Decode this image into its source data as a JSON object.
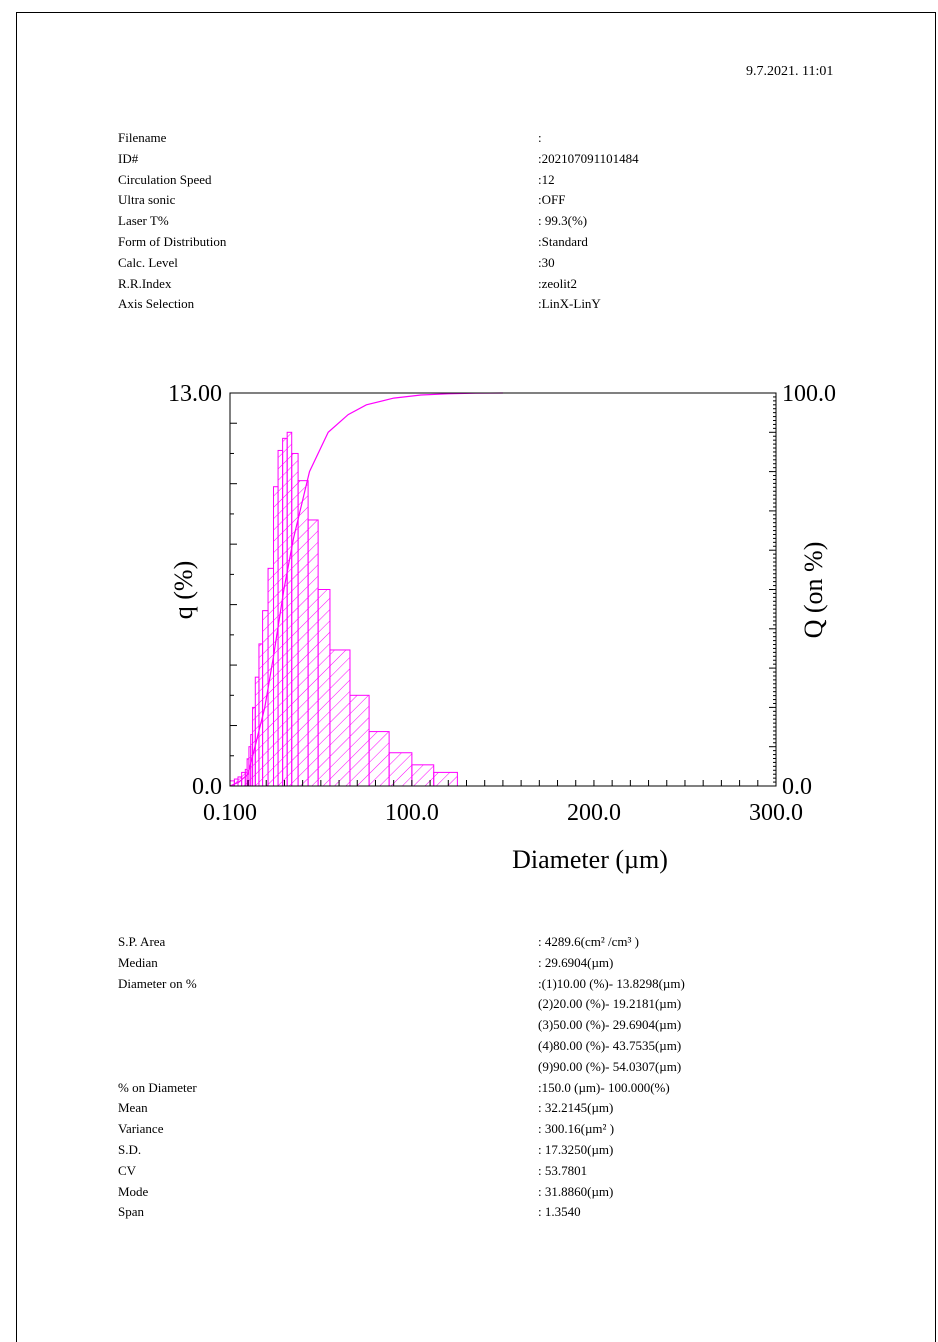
{
  "header": {
    "timestamp": "9.7.2021. 11:01"
  },
  "params": [
    {
      "label": "Filename",
      "value": ":"
    },
    {
      "label": "ID#",
      "value": ":202107091101484"
    },
    {
      "label": "Circulation Speed",
      "value": ":12"
    },
    {
      "label": "Ultra sonic",
      "value": ":OFF"
    },
    {
      "label": "Laser T%",
      "value": ": 99.3(%)"
    },
    {
      "label": "Form of Distribution",
      "value": ":Standard"
    },
    {
      "label": "Calc. Level",
      "value": ":30"
    },
    {
      "label": "R.R.Index",
      "value": ":zeolit2"
    },
    {
      "label": "Axis Selection",
      "value": ":LinX-LinY"
    }
  ],
  "stats": [
    {
      "label": "S.P. Area",
      "value": ":  4289.6(cm² /cm³ )"
    },
    {
      "label": "Median",
      "value": ": 29.6904(µm)"
    },
    {
      "label": "Diameter on %",
      "value": ":(1)10.00 (%)-  13.8298(µm)"
    },
    {
      "label": "",
      "value": " (2)20.00 (%)-  19.2181(µm)"
    },
    {
      "label": "",
      "value": " (3)50.00 (%)-  29.6904(µm)"
    },
    {
      "label": "",
      "value": " (4)80.00 (%)-  43.7535(µm)"
    },
    {
      "label": "",
      "value": " (9)90.00 (%)-  54.0307(µm)"
    },
    {
      "label": "% on Diameter",
      "value": ":150.0 (µm)-  100.000(%)"
    },
    {
      "label": "Mean",
      "value": ": 32.2145(µm)"
    },
    {
      "label": "Variance",
      "value": ":  300.16(µm² )"
    },
    {
      "label": "S.D.",
      "value": ": 17.3250(µm)"
    },
    {
      "label": "CV",
      "value": ": 53.7801"
    },
    {
      "label": "Mode",
      "value": ": 31.8860(µm)"
    },
    {
      "label": "Span",
      "value": ":  1.3540"
    }
  ],
  "chart_data": {
    "type": "bar",
    "xlabel": "Diameter (µm)",
    "ylabel_left": "q (%)",
    "ylabel_right": "Q (on %)",
    "x_tick_labels": [
      "0.100",
      "100.0",
      "200.0",
      "300.0"
    ],
    "x_ticks": [
      0.1,
      100,
      200,
      300
    ],
    "xlim": [
      0.1,
      300
    ],
    "y_left_tick_labels": [
      "0.0",
      "13.00"
    ],
    "ylim_left": [
      0,
      13
    ],
    "y_right_tick_labels": [
      "0.0",
      "100.0"
    ],
    "ylim_right": [
      0,
      100
    ],
    "color": "#ff00ff",
    "series": [
      {
        "kind": "histogram",
        "bins": [
          {
            "x0": 0.1,
            "x1": 2.5,
            "q": 0.17
          },
          {
            "x0": 2.5,
            "x1": 4.5,
            "q": 0.23
          },
          {
            "x0": 4.5,
            "x1": 6.5,
            "q": 0.3
          },
          {
            "x0": 6.5,
            "x1": 8.5,
            "q": 0.45
          },
          {
            "x0": 8.5,
            "x1": 9.5,
            "q": 0.55
          },
          {
            "x0": 9.5,
            "x1": 10.5,
            "q": 0.9
          },
          {
            "x0": 10.5,
            "x1": 11.5,
            "q": 1.3
          },
          {
            "x0": 11.5,
            "x1": 12.5,
            "q": 1.7
          },
          {
            "x0": 12.5,
            "x1": 14.0,
            "q": 2.6
          },
          {
            "x0": 14.0,
            "x1": 16.0,
            "q": 3.6
          },
          {
            "x0": 16.0,
            "x1": 18.0,
            "q": 4.7
          },
          {
            "x0": 18.0,
            "x1": 21.0,
            "q": 5.8
          },
          {
            "x0": 21.0,
            "x1": 24.0,
            "q": 7.2
          },
          {
            "x0": 24.0,
            "x1": 26.5,
            "q": 9.9
          },
          {
            "x0": 26.5,
            "x1": 29.0,
            "q": 11.1
          },
          {
            "x0": 29.0,
            "x1": 31.5,
            "q": 11.5
          },
          {
            "x0": 31.5,
            "x1": 34.0,
            "q": 11.7
          },
          {
            "x0": 34.0,
            "x1": 37.5,
            "q": 11.0
          },
          {
            "x0": 37.5,
            "x1": 43.0,
            "q": 10.1
          },
          {
            "x0": 43.0,
            "x1": 48.5,
            "q": 8.8
          },
          {
            "x0": 48.5,
            "x1": 55.0,
            "q": 6.5
          },
          {
            "x0": 55.0,
            "x1": 66.0,
            "q": 4.5
          },
          {
            "x0": 66.0,
            "x1": 76.5,
            "q": 3.0
          },
          {
            "x0": 76.5,
            "x1": 87.5,
            "q": 1.8
          },
          {
            "x0": 87.5,
            "x1": 100.0,
            "q": 1.1
          },
          {
            "x0": 100.0,
            "x1": 112.0,
            "q": 0.7
          },
          {
            "x0": 112.0,
            "x1": 125.0,
            "q": 0.45
          }
        ]
      },
      {
        "kind": "cumulative",
        "x": [
          0.1,
          5,
          10,
          13.83,
          19.22,
          24,
          29.69,
          35,
          43.75,
          54.03,
          65,
          75,
          90,
          105,
          120,
          135,
          150
        ],
        "y": [
          0,
          1,
          3,
          10,
          20,
          33,
          50,
          63,
          80,
          90,
          94.5,
          97,
          98.7,
          99.5,
          99.8,
          99.95,
          100
        ]
      }
    ]
  }
}
